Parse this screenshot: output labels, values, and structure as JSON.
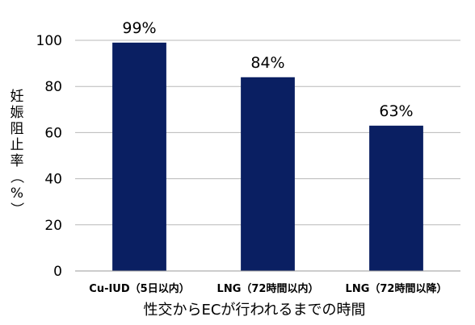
{
  "chart_data": {
    "type": "bar",
    "title": "",
    "categories": [
      "Cu-IUD（5日以内）",
      "LNG（72時間以内）",
      "LNG（72時間以降）"
    ],
    "series": [
      {
        "values": [
          99,
          84,
          63
        ],
        "labels": [
          "99%",
          "84%",
          "63%"
        ]
      }
    ],
    "xlabel": "性交からECが行われるまでの時間",
    "ylabel": "妊娠阻止率（%）",
    "ylim": [
      0,
      100
    ],
    "yticks": [
      0,
      20,
      40,
      60,
      80,
      100
    ],
    "grid": true,
    "legend": "none",
    "bar_color": "#0a1f62",
    "grid_color": "#b8b8b8"
  }
}
